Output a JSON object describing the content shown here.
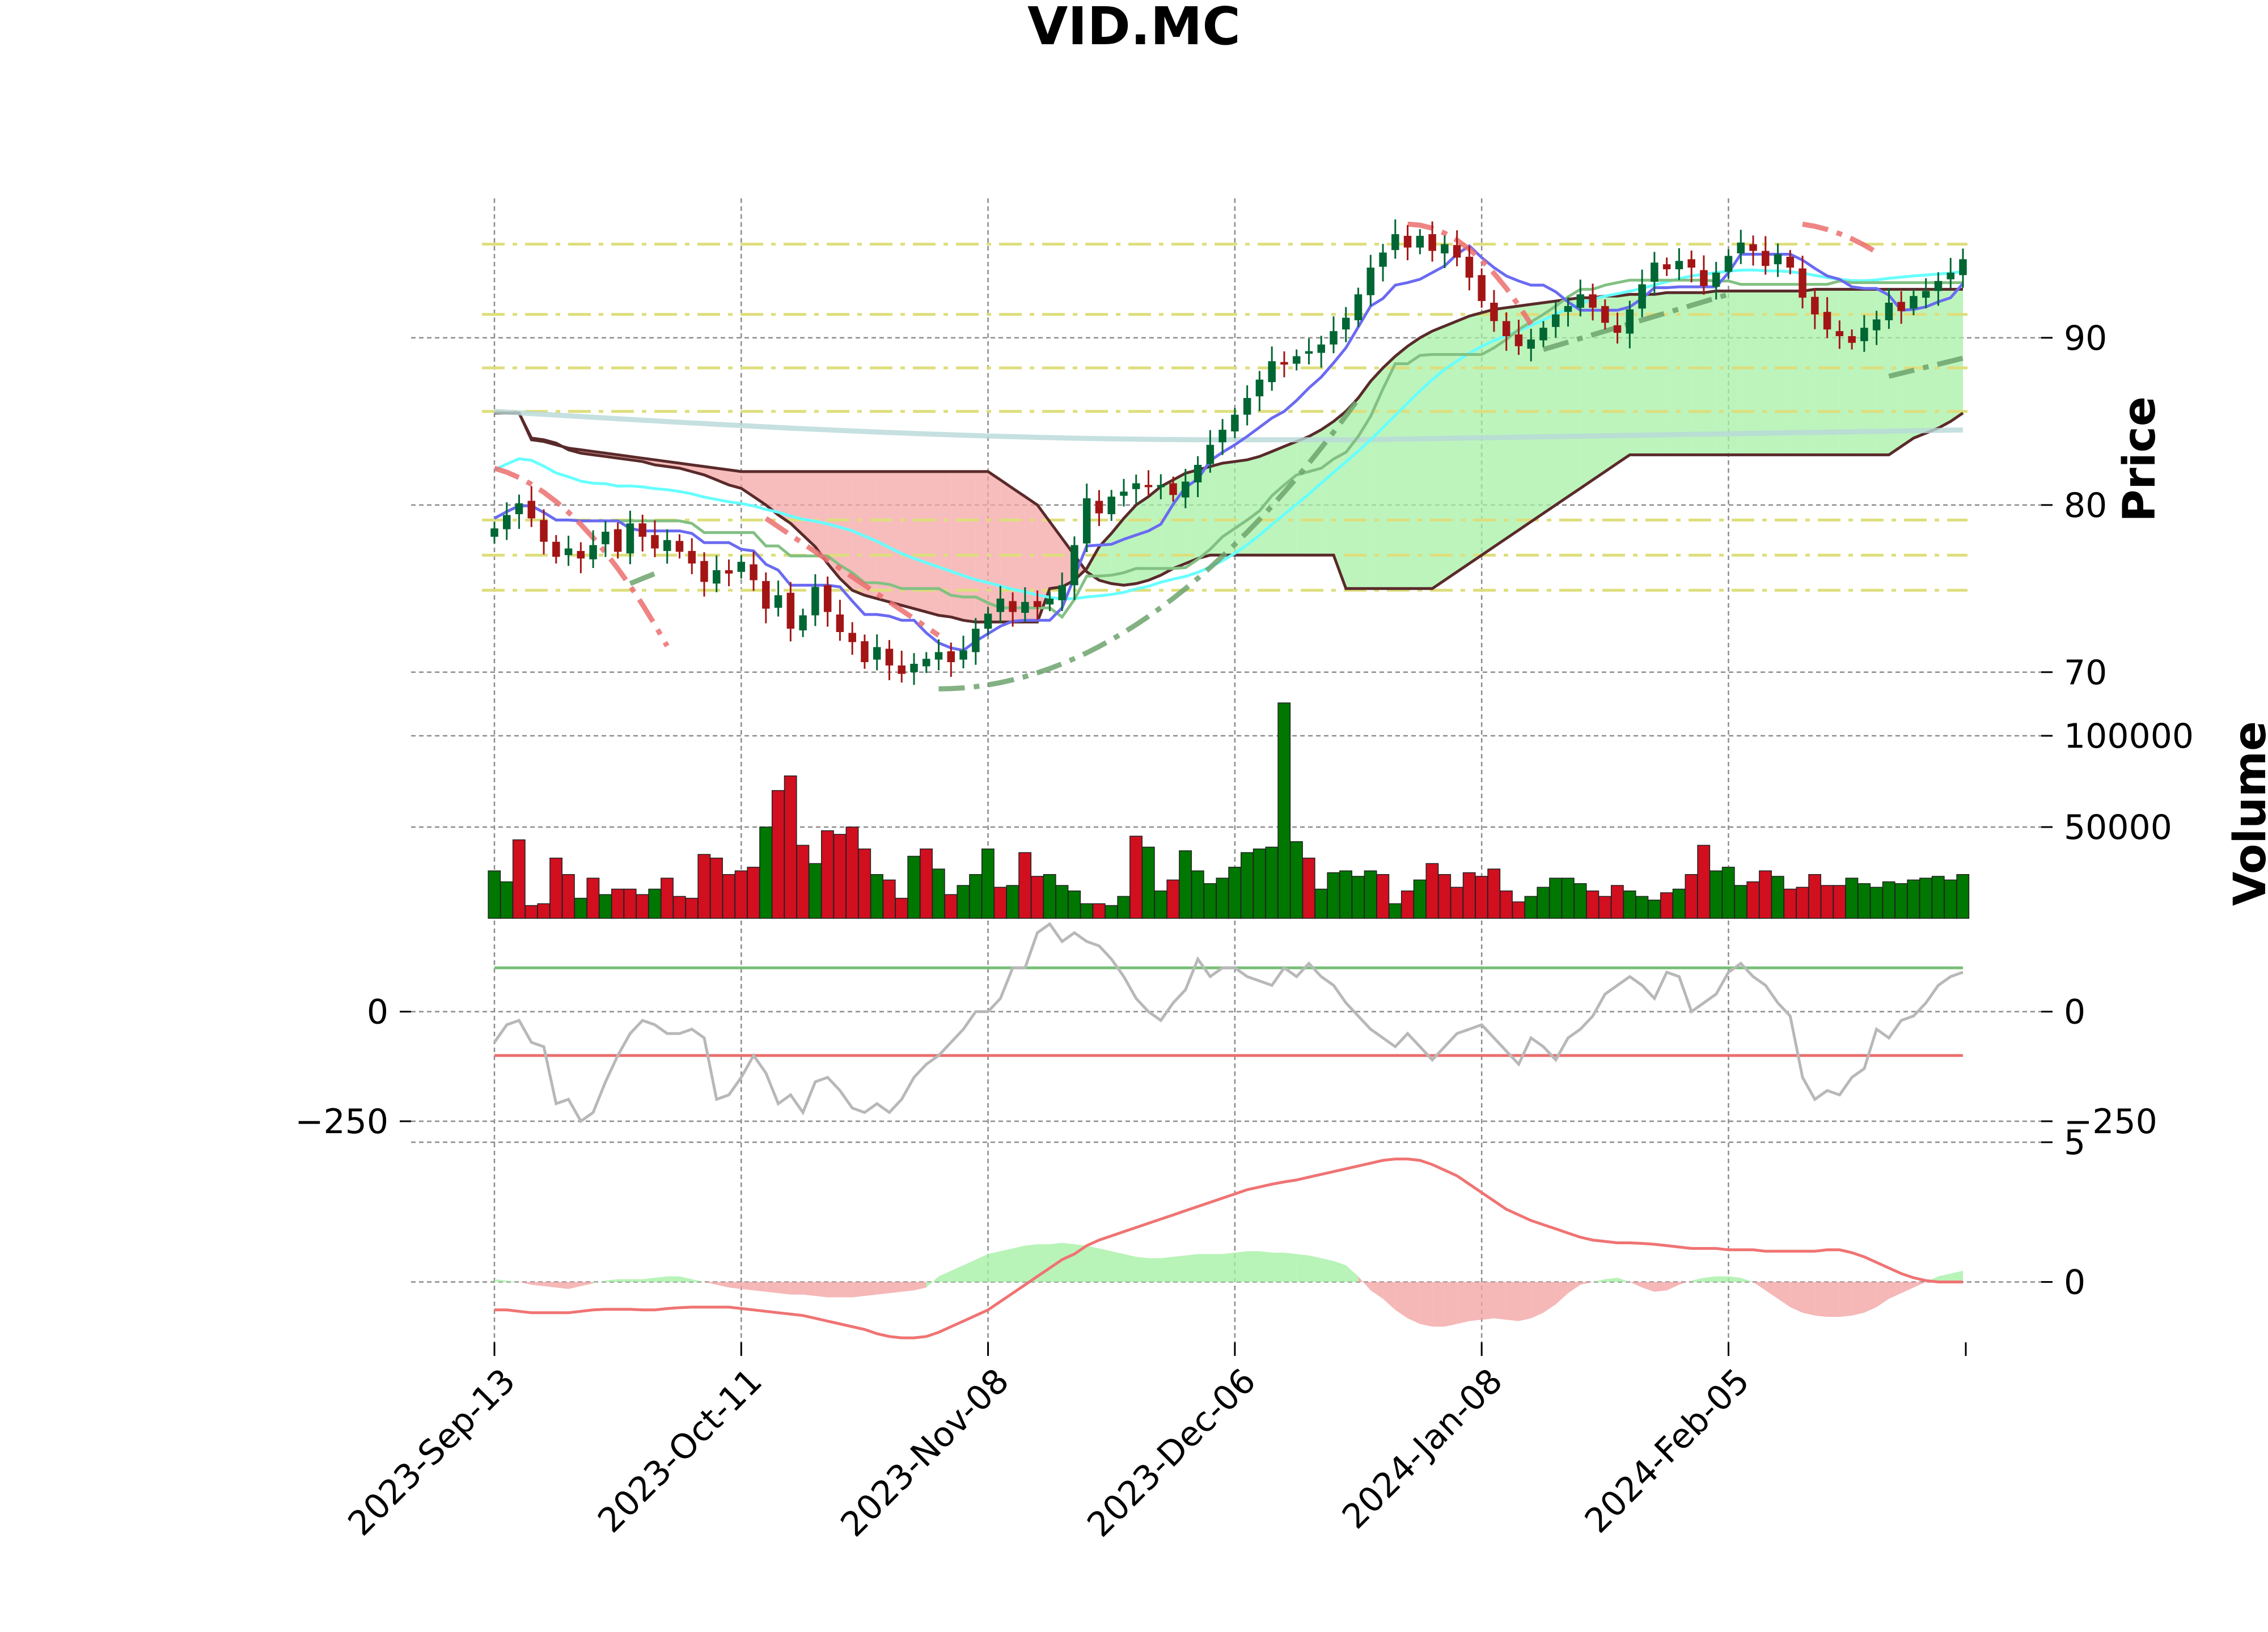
{
  "chart_data": {
    "type": "candlestick",
    "title": "VID.MC",
    "x_tick_labels": [
      "2023-Sep-13",
      "2023-Oct-11",
      "2023-Nov-08",
      "2023-Dec-06",
      "2024-Jan-08",
      "2024-Feb-05"
    ],
    "x_tick_index": [
      0,
      20,
      40,
      60,
      80,
      100
    ],
    "num_sessions": 120,
    "panels": {
      "price": {
        "ylabel": "Price",
        "ylim": [
          68.5,
          98
        ],
        "y_ticks": [
          70,
          80,
          90
        ],
        "y_tick_labels": [
          "70",
          "80",
          "90"
        ],
        "close_series": [
          78.6,
          79.4,
          80.1,
          79.2,
          77.8,
          76.9,
          77.4,
          76.8,
          77.6,
          78.4,
          77.2,
          78.9,
          78.1,
          77.4,
          77.9,
          77.2,
          76.5,
          75.4,
          76.1,
          75.9,
          76.6,
          75.5,
          73.8,
          74.6,
          72.6,
          73.4,
          75.1,
          73.6,
          72.4,
          71.8,
          70.6,
          71.5,
          70.4,
          69.9,
          70.5,
          70.8,
          71.2,
          70.6,
          71.3,
          72.6,
          73.5,
          74.4,
          73.6,
          74.2,
          73.9,
          74.4,
          75.2,
          77.6,
          80.4,
          79.5,
          80.5,
          80.8,
          81.3,
          81.1,
          81.2,
          80.6,
          81.4,
          82.4,
          83.6,
          84.5,
          85.4,
          86.4,
          87.5,
          88.6,
          88.4,
          88.9,
          89.2,
          89.6,
          90.4,
          91.2,
          92.6,
          94.2,
          95.1,
          96.2,
          95.4,
          96.1,
          95.2,
          95.6,
          94.8,
          93.6,
          92.2,
          91.0,
          90.1,
          89.5,
          89.9,
          90.6,
          91.4,
          91.9,
          92.6,
          91.8,
          90.9,
          90.3,
          91.7,
          93.2,
          94.5,
          94.1,
          94.6,
          94.2,
          93.1,
          93.9,
          94.9,
          95.7,
          95.2,
          94.3,
          95.0,
          94.2,
          92.4,
          91.4,
          90.5,
          90.1,
          89.7,
          90.6,
          91.1,
          92.1,
          91.6,
          92.5,
          92.8,
          93.4,
          93.9,
          94.7
        ],
        "ichimoku_senkou_a_top": [
          85.5,
          85.5,
          85.5,
          84.0,
          83.9,
          83.7,
          83.3,
          83.1,
          83.0,
          82.9,
          82.8,
          82.7,
          82.6,
          82.4,
          82.3,
          82.2,
          82.0,
          81.8,
          81.5,
          81.2,
          81.0,
          80.5,
          80.0,
          79.4,
          78.9,
          78.2,
          77.5,
          76.5,
          75.6,
          74.9,
          74.6,
          74.4,
          74.2,
          74.0,
          73.8,
          73.6,
          73.4,
          73.3,
          73.1,
          73.0,
          73.0,
          73.0,
          73.0,
          73.0,
          73.0,
          75.0,
          75.1,
          75.5,
          76.2,
          77.5,
          78.3,
          79.2,
          80.0,
          80.5,
          81.1,
          81.5,
          81.9,
          82.1,
          82.3,
          82.5,
          82.6,
          82.7,
          82.9,
          83.2,
          83.5,
          83.8,
          84.1,
          84.5,
          85.0,
          85.6,
          86.4,
          87.4,
          88.2,
          88.9,
          89.5,
          90.0,
          90.4,
          90.7,
          91.0,
          91.3,
          91.5,
          91.7,
          91.8,
          91.9,
          92.0,
          92.1,
          92.2,
          92.3,
          92.4,
          92.4,
          92.5,
          92.5,
          92.6,
          92.6,
          92.6,
          92.7,
          92.7,
          92.7,
          92.7,
          92.8,
          92.8,
          92.8,
          92.8,
          92.8,
          92.8,
          92.8,
          92.8,
          92.9,
          92.9,
          92.9,
          92.9,
          92.9,
          92.9,
          92.9,
          92.9,
          92.9,
          92.9,
          92.9,
          92.9,
          92.9
        ],
        "ichimoku_senkou_b": [
          85.5,
          85.5,
          85.5,
          83.9,
          83.8,
          83.6,
          83.4,
          83.3,
          83.2,
          83.1,
          83.0,
          82.9,
          82.8,
          82.7,
          82.6,
          82.5,
          82.4,
          82.3,
          82.2,
          82.1,
          82.0,
          82.0,
          82.0,
          82.0,
          82.0,
          82.0,
          82.0,
          82.0,
          82.0,
          82.0,
          82.0,
          82.0,
          82.0,
          82.0,
          82.0,
          82.0,
          82.0,
          82.0,
          82.0,
          82.0,
          82.0,
          81.5,
          81.0,
          80.5,
          80.0,
          79.0,
          78.0,
          77.0,
          76.0,
          75.5,
          75.3,
          75.2,
          75.3,
          75.5,
          75.8,
          76.2,
          76.5,
          76.8,
          77.0,
          77.0,
          77.0,
          77.0,
          77.0,
          77.0,
          77.0,
          77.0,
          77.0,
          77.0,
          77.0,
          75.0,
          75.0,
          75.0,
          75.0,
          75.0,
          75.0,
          75.0,
          75.0,
          75.5,
          76.0,
          76.5,
          77.0,
          77.5,
          78.0,
          78.5,
          79.0,
          79.5,
          80.0,
          80.5,
          81.0,
          81.5,
          82.0,
          82.5,
          83.0,
          83.0,
          83.0,
          83.0,
          83.0,
          83.0,
          83.0,
          83.0,
          83.0,
          83.0,
          83.0,
          83.0,
          83.0,
          83.0,
          83.0,
          83.0,
          83.0,
          83.0,
          83.0,
          83.0,
          83.0,
          83.0,
          83.5,
          84.0,
          84.3,
          84.6,
          85.0,
          85.5
        ]
      },
      "volume": {
        "ylabel": "Volume",
        "y_ticks": [
          50000,
          100000
        ],
        "y_tick_labels": [
          "50000",
          "100000"
        ],
        "ylim": [
          0,
          118000
        ],
        "values": [
          26000,
          20000,
          43000,
          7000,
          8000,
          33000,
          24000,
          11000,
          22000,
          13000,
          16000,
          16000,
          13000,
          16000,
          22000,
          12000,
          11000,
          35000,
          33000,
          24000,
          26000,
          28000,
          50000,
          70000,
          78000,
          40000,
          30000,
          48000,
          46000,
          50000,
          38000,
          24000,
          21000,
          11000,
          34000,
          38000,
          27000,
          13000,
          18000,
          24000,
          38000,
          17000,
          18000,
          36000,
          23000,
          24000,
          18000,
          15000,
          8000,
          8000,
          7000,
          12000,
          45000,
          39000,
          15000,
          21000,
          37000,
          26000,
          19000,
          22000,
          28000,
          36000,
          38000,
          39000,
          118000,
          42000,
          33000,
          16000,
          25000,
          26000,
          23000,
          26000,
          24000,
          8000,
          15000,
          21000,
          30000,
          24000,
          17000,
          25000,
          23000,
          27000,
          15000,
          9000,
          12000,
          17000,
          22000,
          22000,
          19000,
          15000,
          12000,
          18000,
          15000,
          12000,
          10000,
          14000,
          16000,
          24000,
          40000,
          26000,
          28000,
          18000,
          20000,
          26000,
          23000,
          16000,
          17000,
          24000,
          18000,
          18000,
          22000,
          19000,
          17000,
          20000,
          19000,
          21000,
          22000,
          23000,
          21000,
          24000
        ],
        "up": [
          true,
          true,
          false,
          false,
          false,
          false,
          false,
          true,
          false,
          true,
          false,
          false,
          false,
          true,
          false,
          false,
          false,
          false,
          false,
          false,
          false,
          false,
          true,
          false,
          false,
          false,
          true,
          false,
          false,
          false,
          false,
          true,
          false,
          false,
          true,
          false,
          true,
          false,
          true,
          true,
          true,
          false,
          true,
          false,
          false,
          true,
          true,
          true,
          true,
          false,
          true,
          true,
          false,
          true,
          true,
          false,
          true,
          true,
          true,
          true,
          true,
          true,
          true,
          true,
          true,
          true,
          false,
          true,
          true,
          true,
          true,
          true,
          false,
          true,
          false,
          true,
          false,
          false,
          false,
          false,
          false,
          false,
          false,
          false,
          true,
          true,
          true,
          true,
          true,
          false,
          false,
          false,
          true,
          true,
          true,
          false,
          true,
          false,
          false,
          true,
          true,
          true,
          false,
          false,
          true,
          false,
          false,
          false,
          false,
          false,
          true,
          true,
          true,
          true,
          true,
          true,
          true,
          true,
          true,
          true
        ]
      },
      "cci": {
        "y_ticks": [
          0,
          -250
        ],
        "y_tick_labels": [
          "0",
          "−250"
        ],
        "ylim": [
          -285,
          200
        ],
        "upper_band": 100,
        "lower_band": -100,
        "values": [
          -70,
          -30,
          -20,
          -70,
          -80,
          -210,
          -200,
          -250,
          -230,
          -160,
          -100,
          -50,
          -20,
          -30,
          -50,
          -50,
          -40,
          -60,
          -200,
          -190,
          -150,
          -100,
          -140,
          -210,
          -190,
          -230,
          -160,
          -150,
          -180,
          -220,
          -230,
          -210,
          -230,
          -200,
          -150,
          -120,
          -100,
          -70,
          -40,
          0,
          0,
          30,
          100,
          100,
          180,
          200,
          160,
          180,
          160,
          150,
          120,
          80,
          30,
          0,
          -20,
          20,
          50,
          120,
          80,
          100,
          100,
          80,
          70,
          60,
          100,
          80,
          110,
          80,
          60,
          20,
          -10,
          -40,
          -60,
          -80,
          -50,
          -80,
          -110,
          -80,
          -50,
          -40,
          -30,
          -60,
          -90,
          -120,
          -60,
          -80,
          -110,
          -60,
          -40,
          -10,
          40,
          60,
          80,
          60,
          30,
          90,
          80,
          0,
          20,
          40,
          90,
          110,
          80,
          60,
          20,
          -10,
          -150,
          -200,
          -180,
          -190,
          -150,
          -130,
          -40,
          -60,
          -20,
          -10,
          20,
          60,
          80,
          90
        ]
      },
      "macd": {
        "y_ticks": [
          0,
          5
        ],
        "y_tick_labels": [
          "0",
          "5"
        ],
        "ylim": [
          -2.2,
          5.0
        ],
        "macd_line": [
          -1.0,
          -1.0,
          -1.05,
          -1.1,
          -1.1,
          -1.1,
          -1.1,
          -1.05,
          -1.0,
          -0.98,
          -0.98,
          -0.98,
          -1.0,
          -1.0,
          -0.95,
          -0.92,
          -0.9,
          -0.9,
          -0.9,
          -0.9,
          -0.95,
          -1.0,
          -1.05,
          -1.1,
          -1.15,
          -1.2,
          -1.3,
          -1.4,
          -1.5,
          -1.6,
          -1.7,
          -1.85,
          -1.95,
          -2.0,
          -2.0,
          -1.95,
          -1.8,
          -1.6,
          -1.4,
          -1.2,
          -1.0,
          -0.7,
          -0.4,
          -0.1,
          0.2,
          0.5,
          0.8,
          1.0,
          1.3,
          1.5,
          1.65,
          1.8,
          1.95,
          2.1,
          2.25,
          2.4,
          2.55,
          2.7,
          2.85,
          3.0,
          3.15,
          3.3,
          3.4,
          3.5,
          3.58,
          3.65,
          3.75,
          3.85,
          3.95,
          4.05,
          4.15,
          4.25,
          4.35,
          4.4,
          4.4,
          4.35,
          4.2,
          4.0,
          3.8,
          3.5,
          3.2,
          2.9,
          2.6,
          2.4,
          2.2,
          2.05,
          1.9,
          1.75,
          1.6,
          1.5,
          1.45,
          1.4,
          1.4,
          1.38,
          1.35,
          1.3,
          1.25,
          1.2,
          1.2,
          1.2,
          1.15,
          1.15,
          1.15,
          1.1,
          1.1,
          1.1,
          1.1,
          1.1,
          1.15,
          1.15,
          1.05,
          0.9,
          0.7,
          0.5,
          0.3,
          0.15,
          0.05,
          0.0,
          0.0,
          0.0
        ],
        "histogram": [
          0.1,
          0.05,
          0.0,
          -0.1,
          -0.15,
          -0.2,
          -0.25,
          -0.15,
          -0.05,
          0.05,
          0.1,
          0.1,
          0.1,
          0.15,
          0.2,
          0.2,
          0.1,
          0.0,
          -0.1,
          -0.2,
          -0.25,
          -0.3,
          -0.35,
          -0.4,
          -0.45,
          -0.45,
          -0.5,
          -0.55,
          -0.55,
          -0.55,
          -0.5,
          -0.45,
          -0.4,
          -0.35,
          -0.3,
          -0.2,
          0.2,
          0.4,
          0.6,
          0.8,
          1.0,
          1.1,
          1.2,
          1.3,
          1.35,
          1.35,
          1.4,
          1.35,
          1.3,
          1.2,
          1.1,
          1.0,
          0.9,
          0.85,
          0.85,
          0.9,
          0.95,
          1.0,
          1.0,
          1.0,
          1.05,
          1.1,
          1.1,
          1.05,
          1.05,
          1.0,
          0.95,
          0.85,
          0.75,
          0.6,
          0.2,
          -0.3,
          -0.6,
          -1.0,
          -1.3,
          -1.5,
          -1.6,
          -1.6,
          -1.5,
          -1.4,
          -1.35,
          -1.3,
          -1.35,
          -1.4,
          -1.3,
          -1.1,
          -0.8,
          -0.4,
          -0.1,
          0.0,
          0.1,
          0.15,
          0.0,
          -0.2,
          -0.35,
          -0.3,
          -0.1,
          0.05,
          0.15,
          0.2,
          0.2,
          0.15,
          0.0,
          -0.3,
          -0.6,
          -0.9,
          -1.1,
          -1.2,
          -1.25,
          -1.25,
          -1.2,
          -1.1,
          -0.9,
          -0.6,
          -0.4,
          -0.2,
          0.0,
          0.2,
          0.3,
          0.4
        ]
      }
    },
    "colors": {
      "up_candle": "#006633",
      "down_candle": "#a31515",
      "volume_up": "#007700",
      "volume_down": "#d10f1f",
      "ichimoku_bull_fill": "#a6f0a6",
      "ichimoku_bear_fill": "#f4a5a5",
      "kumo_line": "#5a2a2a",
      "fast_line": "#6a6af2",
      "slow_line": "#82c082",
      "cyan_ma": "#66ffff",
      "long_ma": "#b8d8d8",
      "psar_bull": "#6da36d",
      "psar_bear": "#ec6e6e",
      "sr_lines": "#dede7c",
      "cci_line": "#b8b8b8",
      "cci_upper": "#78c078",
      "cci_lower": "#ec6e6e",
      "macd_line": "#f07373",
      "hist_pos": "#a6f0a6",
      "hist_neg": "#f4a5a5"
    }
  }
}
